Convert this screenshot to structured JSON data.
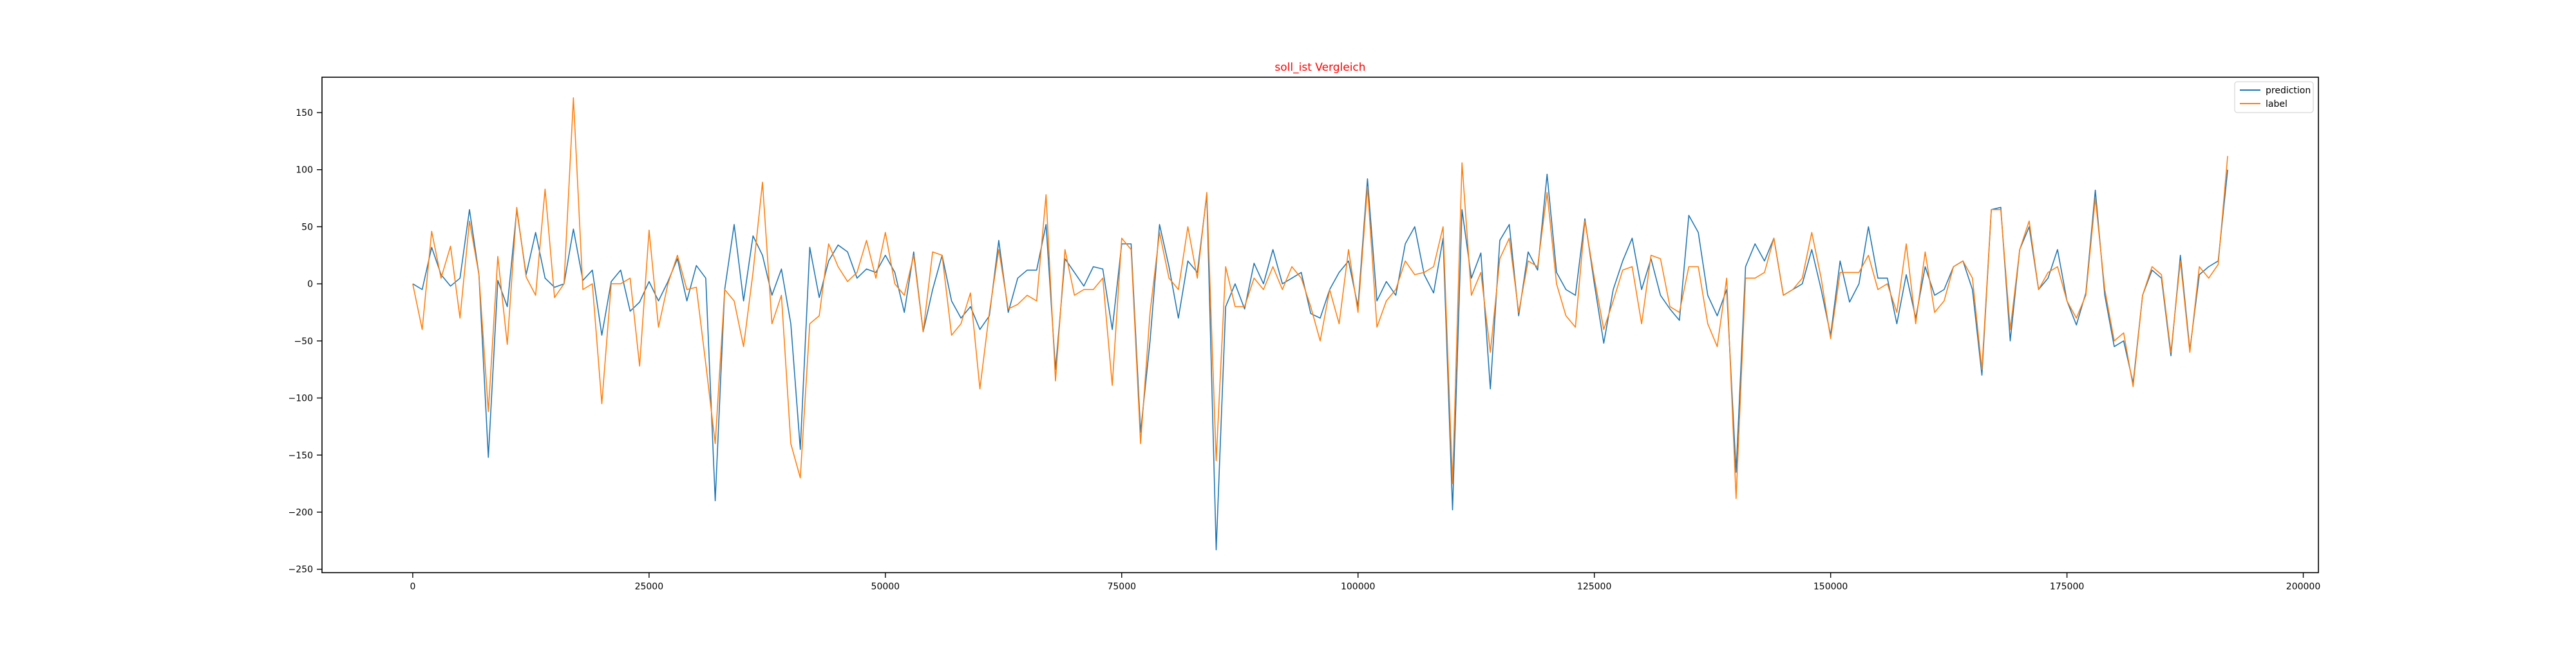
{
  "chart_data": {
    "type": "line",
    "title": "soll_ist Vergleich",
    "title_color": "#ff0000",
    "xlabel": "",
    "ylabel": "",
    "xlim": [
      -9600,
      201600
    ],
    "ylim": [
      -253,
      181
    ],
    "x_ticks": [
      0,
      25000,
      50000,
      75000,
      100000,
      125000,
      150000,
      175000,
      200000
    ],
    "y_ticks": [
      -250,
      -200,
      -150,
      -100,
      -50,
      0,
      50,
      100,
      150
    ],
    "grid": false,
    "legend_position": "top-right",
    "x_start": 0,
    "x_step": 1000,
    "series": [
      {
        "name": "prediction",
        "color": "#1f77b4",
        "values": [
          0,
          -5,
          32,
          8,
          -2,
          5,
          65,
          8,
          -152,
          3,
          -20,
          65,
          8,
          45,
          5,
          -3,
          0,
          48,
          3,
          12,
          -45,
          2,
          12,
          -24,
          -16,
          2,
          -15,
          2,
          22,
          -15,
          16,
          5,
          -190,
          -5,
          52,
          -15,
          42,
          25,
          -10,
          13,
          -35,
          -145,
          32,
          -12,
          20,
          34,
          28,
          5,
          13,
          10,
          25,
          10,
          -25,
          28,
          -42,
          -5,
          25,
          -15,
          -30,
          -20,
          -40,
          -28,
          38,
          -25,
          5,
          12,
          12,
          52,
          -75,
          22,
          10,
          -2,
          15,
          13,
          -40,
          35,
          35,
          -130,
          -50,
          52,
          15,
          -30,
          20,
          10,
          78,
          -233,
          -20,
          0,
          -22,
          18,
          0,
          30,
          0,
          5,
          10,
          -26,
          -30,
          -5,
          10,
          20,
          -20,
          92,
          -15,
          2,
          -10,
          35,
          50,
          8,
          -8,
          40,
          -198,
          65,
          5,
          27,
          -92,
          38,
          52,
          -28,
          28,
          12,
          96,
          10,
          -5,
          -10,
          57,
          0,
          -52,
          -5,
          20,
          40,
          -5,
          22,
          -10,
          -22,
          -32,
          60,
          45,
          -10,
          -28,
          -5,
          -165,
          15,
          35,
          20,
          40,
          -10,
          -5,
          0,
          30,
          -5,
          -45,
          20,
          -16,
          0,
          50,
          5,
          5,
          -35,
          8,
          -30,
          15,
          -10,
          -5,
          15,
          20,
          -5,
          -80,
          65,
          67,
          -50,
          30,
          50,
          -5,
          5,
          30,
          -15,
          -36,
          -8,
          82,
          -10,
          -55,
          -50,
          -87,
          -10,
          12,
          5,
          -63,
          25,
          -58,
          8,
          15,
          20,
          100
        ]
      },
      {
        "name": "label",
        "color": "#ff7f0e",
        "values": [
          0,
          -40,
          46,
          5,
          33,
          -30,
          55,
          8,
          -112,
          24,
          -53,
          67,
          6,
          -10,
          83,
          -12,
          0,
          163,
          -5,
          0,
          -105,
          0,
          0,
          5,
          -72,
          47,
          -38,
          0,
          25,
          -5,
          -3,
          -70,
          -140,
          -5,
          -15,
          -55,
          10,
          89,
          -35,
          -10,
          -140,
          -170,
          -35,
          -28,
          35,
          15,
          2,
          10,
          38,
          5,
          45,
          0,
          -10,
          25,
          -42,
          28,
          25,
          -45,
          -35,
          -8,
          -92,
          -25,
          30,
          -22,
          -18,
          -10,
          -15,
          78,
          -85,
          30,
          -10,
          -5,
          -5,
          5,
          -89,
          40,
          30,
          -140,
          -25,
          45,
          5,
          -5,
          50,
          5,
          80,
          -155,
          15,
          -20,
          -20,
          5,
          -5,
          15,
          -5,
          15,
          5,
          -20,
          -50,
          -5,
          -35,
          30,
          -25,
          85,
          -38,
          -15,
          -5,
          20,
          8,
          10,
          15,
          50,
          -175,
          106,
          -10,
          10,
          -60,
          22,
          40,
          -25,
          20,
          15,
          80,
          0,
          -28,
          -38,
          55,
          5,
          -40,
          -15,
          12,
          15,
          -35,
          25,
          22,
          -20,
          -25,
          15,
          15,
          -35,
          -55,
          5,
          -188,
          5,
          5,
          10,
          40,
          -10,
          -5,
          5,
          45,
          5,
          -48,
          10,
          10,
          10,
          25,
          -5,
          0,
          -25,
          35,
          -35,
          28,
          -25,
          -15,
          15,
          20,
          5,
          -75,
          65,
          65,
          -40,
          30,
          55,
          -5,
          10,
          15,
          -15,
          -30,
          -10,
          75,
          -5,
          -50,
          -43,
          -90,
          -10,
          15,
          8,
          -60,
          20,
          -60,
          15,
          5,
          17,
          112
        ]
      }
    ]
  }
}
